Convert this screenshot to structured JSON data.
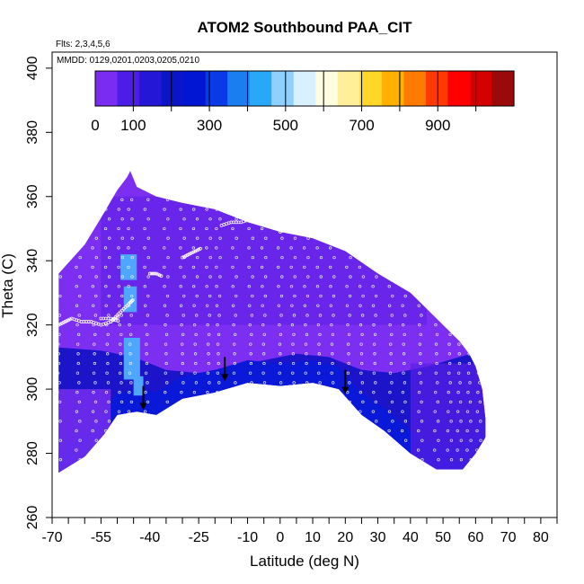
{
  "chart_data": {
    "type": "heatmap",
    "title": "ATOM2 Southbound PAA_CIT",
    "flights_note": "Flts: 2,3,4,5,6",
    "dates_note": "MMDD: 0129,0201,0203,0205,0210",
    "xlabel": "Latitude (deg N)",
    "ylabel": "Theta (C)",
    "xlim": [
      -70,
      85
    ],
    "ylim": [
      260,
      405
    ],
    "x_ticks": [
      -70,
      -55,
      -40,
      -25,
      -10,
      0,
      10,
      20,
      30,
      40,
      50,
      60,
      70,
      80
    ],
    "x_tick_labels": [
      "-70",
      "-55",
      "-40",
      "-25",
      "-10",
      "0",
      "10",
      "20",
      "30",
      "40",
      "50",
      "60",
      "70",
      "80"
    ],
    "x_minor_ticks": [
      -65,
      -60,
      -50,
      -45,
      -35,
      -30,
      -20,
      -15,
      -5,
      5,
      15,
      25,
      35,
      45,
      55,
      65,
      75,
      85
    ],
    "y_ticks": [
      260,
      280,
      300,
      320,
      340,
      360,
      380,
      400
    ],
    "y_tick_labels": [
      "260",
      "280",
      "300",
      "320",
      "340",
      "360",
      "380",
      "400"
    ],
    "colorbar": {
      "range": [
        0,
        1100
      ],
      "ticks": [
        0,
        100,
        300,
        500,
        700,
        900
      ],
      "tick_labels": [
        "0",
        "100",
        "300",
        "500",
        "700",
        "900"
      ],
      "major_marks": [
        0,
        200,
        400,
        600,
        800,
        1000
      ],
      "colors": [
        "#7a2cf0",
        "#4a1ee6",
        "#2418d6",
        "#0b14c6",
        "#0016d2",
        "#0a3ae6",
        "#1b7ef0",
        "#2aa8f8",
        "#8fd0ff",
        "#d8f0ff",
        "#fffde0",
        "#ffef9a",
        "#ffd62a",
        "#ffb000",
        "#ff7a00",
        "#ff3a00",
        "#ff0000",
        "#d20000",
        "#9a0a0a"
      ]
    },
    "field_colors": {
      "background_purple": "#7c2ff0",
      "mid_purple": "#5a1ee6",
      "dark_blue": "#1c14c8",
      "bright_blue": "#0a18d8",
      "light_blue": "#4fa6ff",
      "ring_color": "#e8e8ff"
    },
    "tropopause_arrows": [
      {
        "lat": -42,
        "theta": 294
      },
      {
        "lat": -17,
        "theta": 303
      },
      {
        "lat": 20,
        "theta": 299
      }
    ],
    "domain_top": [
      [
        -68,
        336
      ],
      [
        -60,
        345
      ],
      [
        -54,
        355
      ],
      [
        -50,
        362
      ],
      [
        -47,
        366
      ],
      [
        -46,
        368
      ],
      [
        -44,
        363
      ],
      [
        -38,
        360
      ],
      [
        -30,
        358
      ],
      [
        -20,
        356
      ],
      [
        -10,
        352
      ],
      [
        0,
        349
      ],
      [
        10,
        347
      ],
      [
        20,
        343
      ],
      [
        30,
        336
      ],
      [
        40,
        330
      ],
      [
        47,
        323
      ],
      [
        52,
        318
      ],
      [
        55,
        315
      ],
      [
        58,
        311
      ],
      [
        60,
        307
      ],
      [
        62,
        300
      ],
      [
        63,
        291
      ]
    ],
    "domain_bottom": [
      [
        -68,
        274
      ],
      [
        -60,
        279
      ],
      [
        -54,
        286
      ],
      [
        -50,
        292
      ],
      [
        -44,
        293
      ],
      [
        -38,
        292
      ],
      [
        -30,
        297
      ],
      [
        -20,
        299
      ],
      [
        -10,
        302
      ],
      [
        0,
        301
      ],
      [
        10,
        302
      ],
      [
        18,
        300
      ],
      [
        25,
        292
      ],
      [
        32,
        287
      ],
      [
        40,
        280
      ],
      [
        48,
        275
      ],
      [
        56,
        275
      ],
      [
        60,
        280
      ],
      [
        63,
        285
      ]
    ],
    "blue_band_bottom": [
      [
        -68,
        313
      ],
      [
        -55,
        312
      ],
      [
        -45,
        310
      ],
      [
        -35,
        306
      ],
      [
        -25,
        305
      ],
      [
        -15,
        307
      ],
      [
        -5,
        309
      ],
      [
        5,
        311
      ],
      [
        15,
        310
      ],
      [
        25,
        306
      ],
      [
        35,
        305
      ],
      [
        45,
        307
      ],
      [
        55,
        310
      ],
      [
        62,
        312
      ]
    ],
    "light_blue_patches": [
      {
        "lat0": -49,
        "lat1": -44,
        "theta0": 334,
        "theta1": 342
      },
      {
        "lat0": -48,
        "lat1": -44,
        "theta0": 324,
        "theta1": 332
      },
      {
        "lat0": -48,
        "lat1": -43,
        "theta0": 303,
        "theta1": 316
      },
      {
        "lat0": -45,
        "lat1": -42,
        "theta0": 298,
        "theta1": 304
      }
    ],
    "flight_tracks": [
      {
        "lat": [
          -68,
          -66,
          -64,
          -61,
          -58,
          -55,
          -52,
          -49
        ],
        "theta": [
          320,
          321,
          322,
          321,
          321,
          320,
          321,
          323
        ]
      },
      {
        "lat": [
          -52,
          -50,
          -48,
          -46,
          -45
        ],
        "theta": [
          321,
          323,
          325,
          327,
          328
        ]
      },
      {
        "lat": [
          -30,
          -28,
          -26,
          -24
        ],
        "theta": [
          341,
          342,
          343,
          344
        ]
      },
      {
        "lat": [
          -18,
          -15,
          -12,
          -9,
          -7
        ],
        "theta": [
          351,
          352,
          352,
          353,
          352
        ]
      },
      {
        "lat": [
          0,
          2,
          4
        ],
        "theta": [
          349,
          350,
          350
        ]
      },
      {
        "lat": [
          -40,
          -38,
          -36
        ],
        "theta": [
          336,
          336,
          335
        ]
      },
      {
        "lat": [
          -55,
          -52,
          -49
        ],
        "theta": [
          322,
          322,
          321
        ]
      }
    ],
    "vertical_profiles": [
      -68,
      -62,
      -57,
      -53,
      -49,
      -46,
      -41,
      -35,
      -30,
      -26,
      -22,
      -19,
      -14,
      -9,
      -5,
      0,
      4,
      8,
      12,
      16,
      21,
      25,
      29,
      34,
      38,
      43,
      48,
      52,
      55,
      58,
      61
    ]
  }
}
